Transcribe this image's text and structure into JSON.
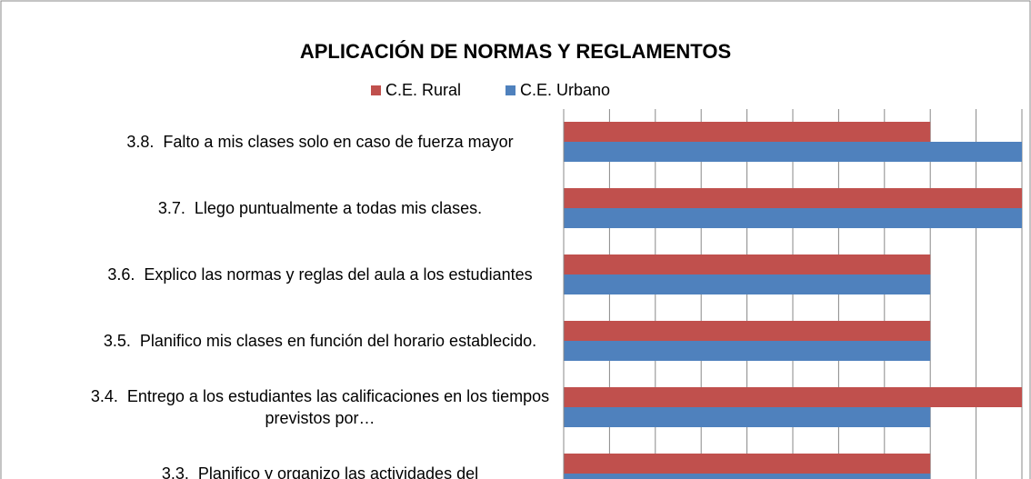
{
  "chart_data": {
    "type": "barh",
    "title": "APLICACIÓN DE NORMAS Y REGLAMENTOS",
    "categories": [
      "3.8.  Falto a mis clases solo en caso de fuerza mayor",
      "3.7.  Llego puntualmente a todas mis clases.",
      "3.6.  Explico las normas y reglas del aula a los estudiantes",
      "3.5.  Planifico mis clases en función del horario establecido.",
      "3.4.  Entrego a los estudiantes las calificaciones en los tiempos previstos por…",
      "3.3.  Planifico y organizo las actividades del"
    ],
    "series": [
      {
        "name": "C.E. Rural",
        "color": "#c0504d",
        "values": [
          4,
          5,
          4,
          4,
          5,
          4
        ]
      },
      {
        "name": "C.E. Urbano",
        "color": "#4f81bd",
        "values": [
          5,
          5,
          4,
          4,
          4,
          4
        ]
      }
    ],
    "xlim": [
      0,
      5
    ],
    "xticks": [
      0,
      0.5,
      1,
      1.5,
      2,
      2.5,
      3,
      3.5,
      4,
      4.5,
      5
    ],
    "grid": true
  }
}
